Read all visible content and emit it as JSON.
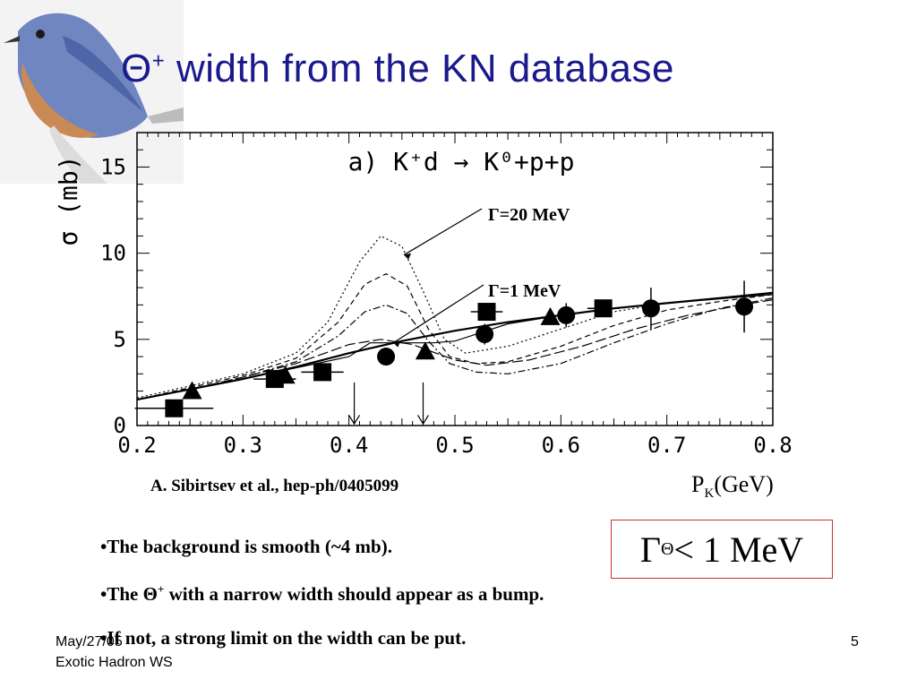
{
  "slide": {
    "title_symbol": "Θ",
    "title_sup": "+",
    "title_text": " width from the KN database",
    "reference": "A. Sibirtsev et al., hep-ph/0405099",
    "xunit_main": "P",
    "xunit_sub": "K",
    "xunit_tail": "(GeV)",
    "result_gamma": "Γ",
    "result_sub": "Θ",
    "result_tail": " < 1 MeV",
    "bullets": {
      "b1": "•The background is smooth (~4 mb).",
      "b2_pre": "•The Θ",
      "b2_sup": "+",
      "b2_post": " with a narrow width should appear as a bump.",
      "b3": "•If not, a strong limit on the width can be put."
    },
    "footer_date": "May/27/05",
    "footer_event": "Exotic Hadron WS",
    "page_number": "5"
  },
  "chart_data": {
    "type": "scatter",
    "title": "a) K⁺d → K⁰+p+p",
    "xlabel": "",
    "ylabel": "σ (mb)",
    "xlim": [
      0.2,
      0.8
    ],
    "ylim": [
      0,
      17
    ],
    "xticks": [
      0.2,
      0.3,
      0.4,
      0.5,
      0.6,
      0.7,
      0.8
    ],
    "xtick_labels": [
      "0.2",
      "0.3",
      "0.4",
      "0.5",
      "0.6",
      "0.7",
      "0.8"
    ],
    "yticks": [
      0,
      5,
      10,
      15
    ],
    "ytick_labels": [
      "0",
      "5",
      "10",
      "15"
    ],
    "annotations": [
      {
        "text": "Γ=20 MeV",
        "points_to": {
          "x": 0.435,
          "y": 9.9
        }
      },
      {
        "text": "Γ=1 MeV",
        "points_to": {
          "x": 0.425,
          "y": 4.8
        }
      }
    ],
    "arrows_at_x": [
      0.405,
      0.47
    ],
    "series": [
      {
        "marker": "square",
        "points": [
          {
            "x": 0.235,
            "y": 1.0,
            "xerr": 0.037
          },
          {
            "x": 0.33,
            "y": 2.7,
            "xerr": 0.02
          },
          {
            "x": 0.375,
            "y": 3.1,
            "xerr": 0.02
          },
          {
            "x": 0.53,
            "y": 6.6,
            "xerr": 0.015
          },
          {
            "x": 0.64,
            "y": 6.8,
            "xerr": 0.015
          }
        ]
      },
      {
        "marker": "triangle",
        "points": [
          {
            "x": 0.252,
            "y": 2.0
          },
          {
            "x": 0.34,
            "y": 2.9
          },
          {
            "x": 0.472,
            "y": 4.3
          },
          {
            "x": 0.59,
            "y": 6.3
          }
        ]
      },
      {
        "marker": "circle",
        "points": [
          {
            "x": 0.435,
            "y": 4.0,
            "yerr": 0.5
          },
          {
            "x": 0.528,
            "y": 5.3,
            "yerr": 0.6
          },
          {
            "x": 0.605,
            "y": 6.4,
            "yerr": 0.7
          },
          {
            "x": 0.685,
            "y": 6.8,
            "yerr": 1.2
          },
          {
            "x": 0.773,
            "y": 6.9,
            "yerr": 1.5
          }
        ]
      }
    ],
    "curves": [
      {
        "style": "solid",
        "points": [
          [
            0.2,
            1.5
          ],
          [
            0.25,
            2.1
          ],
          [
            0.3,
            2.7
          ],
          [
            0.35,
            3.4
          ],
          [
            0.4,
            4.2
          ],
          [
            0.45,
            4.9
          ],
          [
            0.5,
            5.5
          ],
          [
            0.55,
            6.0
          ],
          [
            0.6,
            6.4
          ],
          [
            0.65,
            6.8
          ],
          [
            0.7,
            7.1
          ],
          [
            0.75,
            7.4
          ],
          [
            0.8,
            7.7
          ]
        ]
      },
      {
        "style": "dotted",
        "points": [
          [
            0.2,
            1.6
          ],
          [
            0.25,
            2.3
          ],
          [
            0.3,
            3.0
          ],
          [
            0.35,
            4.2
          ],
          [
            0.38,
            6.0
          ],
          [
            0.41,
            9.5
          ],
          [
            0.43,
            11.0
          ],
          [
            0.45,
            10.4
          ],
          [
            0.47,
            7.8
          ],
          [
            0.49,
            5.0
          ],
          [
            0.51,
            4.2
          ],
          [
            0.55,
            4.6
          ],
          [
            0.6,
            5.6
          ],
          [
            0.65,
            6.6
          ],
          [
            0.7,
            7.1
          ],
          [
            0.75,
            7.4
          ],
          [
            0.8,
            7.7
          ]
        ]
      },
      {
        "style": "dashed",
        "points": [
          [
            0.2,
            1.5
          ],
          [
            0.25,
            2.2
          ],
          [
            0.3,
            2.9
          ],
          [
            0.35,
            3.9
          ],
          [
            0.39,
            6.0
          ],
          [
            0.415,
            8.2
          ],
          [
            0.435,
            8.8
          ],
          [
            0.455,
            8.1
          ],
          [
            0.475,
            5.6
          ],
          [
            0.495,
            4.0
          ],
          [
            0.52,
            3.6
          ],
          [
            0.55,
            3.7
          ],
          [
            0.6,
            4.6
          ],
          [
            0.65,
            5.8
          ],
          [
            0.7,
            6.7
          ],
          [
            0.75,
            7.2
          ],
          [
            0.8,
            7.6
          ]
        ]
      },
      {
        "style": "dashdot",
        "points": [
          [
            0.2,
            1.5
          ],
          [
            0.25,
            2.1
          ],
          [
            0.3,
            2.8
          ],
          [
            0.35,
            3.7
          ],
          [
            0.39,
            5.2
          ],
          [
            0.415,
            6.6
          ],
          [
            0.435,
            7.0
          ],
          [
            0.455,
            6.5
          ],
          [
            0.475,
            4.9
          ],
          [
            0.495,
            3.6
          ],
          [
            0.52,
            3.1
          ],
          [
            0.55,
            3.0
          ],
          [
            0.6,
            3.6
          ],
          [
            0.65,
            4.8
          ],
          [
            0.7,
            5.9
          ],
          [
            0.75,
            6.8
          ],
          [
            0.8,
            7.4
          ]
        ]
      },
      {
        "style": "longdash",
        "points": [
          [
            0.2,
            1.5
          ],
          [
            0.25,
            2.1
          ],
          [
            0.3,
            2.8
          ],
          [
            0.35,
            3.6
          ],
          [
            0.4,
            4.7
          ],
          [
            0.43,
            5.0
          ],
          [
            0.46,
            4.7
          ],
          [
            0.5,
            3.8
          ],
          [
            0.53,
            3.5
          ],
          [
            0.57,
            3.8
          ],
          [
            0.62,
            4.6
          ],
          [
            0.67,
            5.6
          ],
          [
            0.72,
            6.4
          ],
          [
            0.77,
            7.0
          ],
          [
            0.8,
            7.3
          ]
        ]
      },
      {
        "style": "thin",
        "points": [
          [
            0.2,
            1.5
          ],
          [
            0.3,
            2.7
          ],
          [
            0.4,
            4.0
          ],
          [
            0.42,
            4.8
          ],
          [
            0.48,
            4.8
          ],
          [
            0.5,
            4.9
          ],
          [
            0.55,
            5.9
          ],
          [
            0.6,
            6.4
          ],
          [
            0.65,
            6.8
          ],
          [
            0.7,
            7.1
          ],
          [
            0.8,
            7.6
          ]
        ]
      }
    ]
  }
}
